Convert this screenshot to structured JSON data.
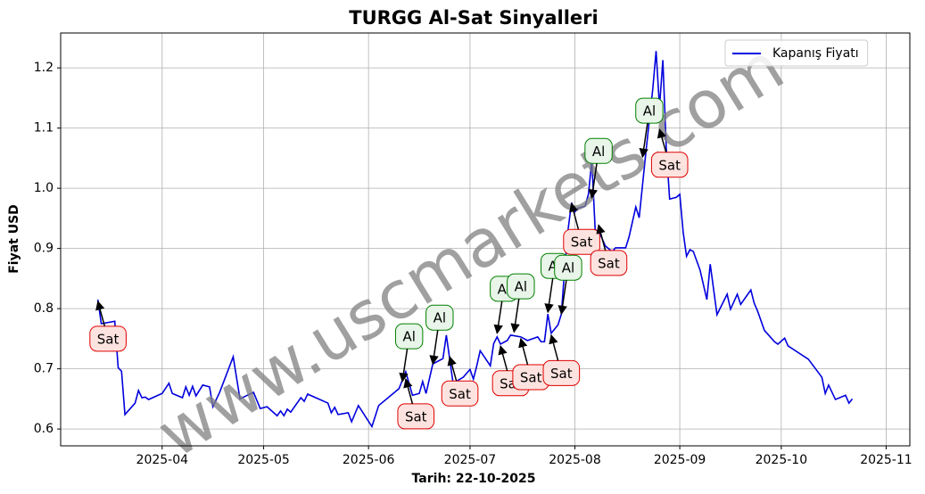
{
  "chart_data": {
    "type": "line",
    "title": "TURGG Al-Sat Sinyalleri",
    "xlabel": "Tarih: 22-10-2025",
    "ylabel": "Fiyat USD",
    "watermark": "www.uscmarkets.com",
    "legend": "upper right",
    "grid": true,
    "xlim": [
      "2025-03-02",
      "2025-11-08"
    ],
    "ylim": [
      0.572,
      1.258
    ],
    "xticks": [
      {
        "value": "2025-04-01",
        "label": "2025-04"
      },
      {
        "value": "2025-05-01",
        "label": "2025-05"
      },
      {
        "value": "2025-06-01",
        "label": "2025-06"
      },
      {
        "value": "2025-07-01",
        "label": "2025-07"
      },
      {
        "value": "2025-08-01",
        "label": "2025-08"
      },
      {
        "value": "2025-09-01",
        "label": "2025-09"
      },
      {
        "value": "2025-10-01",
        "label": "2025-10"
      },
      {
        "value": "2025-11-01",
        "label": "2025-11"
      }
    ],
    "yticks": [
      0.6,
      0.7,
      0.8,
      0.9,
      {
        "value": 1,
        "label": "1.0"
      },
      1.1,
      1.2
    ],
    "x": [
      "2025-03-13",
      "2025-03-14",
      "2025-03-18",
      "2025-03-19",
      "2025-03-20",
      "2025-03-21",
      "2025-03-24",
      "2025-03-25",
      "2025-03-26",
      "2025-03-27",
      "2025-03-28",
      "2025-04-01",
      "2025-04-03",
      "2025-04-04",
      "2025-04-07",
      "2025-04-08",
      "2025-04-09",
      "2025-04-10",
      "2025-04-11",
      "2025-04-13",
      "2025-04-15",
      "2025-04-16",
      "2025-04-18",
      "2025-04-22",
      "2025-04-24",
      "2025-04-28",
      "2025-04-30",
      "2025-05-02",
      "2025-05-05",
      "2025-05-06",
      "2025-05-07",
      "2025-05-08",
      "2025-05-09",
      "2025-05-12",
      "2025-05-13",
      "2025-05-14",
      "2025-05-20",
      "2025-05-21",
      "2025-05-22",
      "2025-05-23",
      "2025-05-26",
      "2025-05-27",
      "2025-05-29",
      "2025-06-02",
      "2025-06-04",
      "2025-06-10",
      "2025-06-12",
      "2025-06-14",
      "2025-06-16",
      "2025-06-17",
      "2025-06-18",
      "2025-06-20",
      "2025-06-23",
      "2025-06-24",
      "2025-06-26",
      "2025-06-29",
      "2025-07-01",
      "2025-07-02",
      "2025-07-03",
      "2025-07-04",
      "2025-07-07",
      "2025-07-08",
      "2025-07-09",
      "2025-07-10",
      "2025-07-12",
      "2025-07-13",
      "2025-07-16",
      "2025-07-18",
      "2025-07-21",
      "2025-07-22",
      "2025-07-23",
      "2025-07-24",
      "2025-07-25",
      "2025-07-27",
      "2025-07-28",
      "2025-07-29",
      "2025-07-30",
      "2025-07-31",
      "2025-08-01",
      "2025-08-02",
      "2025-08-04",
      "2025-08-05",
      "2025-08-06",
      "2025-08-07",
      "2025-08-08",
      "2025-08-10",
      "2025-08-12",
      "2025-08-13",
      "2025-08-16",
      "2025-08-17",
      "2025-08-19",
      "2025-08-20",
      "2025-08-22",
      "2025-08-24",
      "2025-08-25",
      "2025-08-26",
      "2025-08-27",
      "2025-08-28",
      "2025-08-29",
      "2025-08-31",
      "2025-09-01",
      "2025-09-02",
      "2025-09-03",
      "2025-09-04",
      "2025-09-05",
      "2025-09-07",
      "2025-09-09",
      "2025-09-10",
      "2025-09-12",
      "2025-09-15",
      "2025-09-16",
      "2025-09-18",
      "2025-09-19",
      "2025-09-22",
      "2025-09-23",
      "2025-09-24",
      "2025-09-26",
      "2025-09-29",
      "2025-09-30",
      "2025-10-02",
      "2025-10-03",
      "2025-10-09",
      "2025-10-13",
      "2025-10-14",
      "2025-10-15",
      "2025-10-17",
      "2025-10-20",
      "2025-10-21",
      "2025-10-22"
    ],
    "series": [
      {
        "name": "Kapanış Fiyatı",
        "color": "#0000dd",
        "values": [
          0.815,
          0.775,
          0.779,
          0.702,
          0.696,
          0.624,
          0.643,
          0.664,
          0.652,
          0.653,
          0.649,
          0.659,
          0.676,
          0.659,
          0.652,
          0.67,
          0.656,
          0.671,
          0.655,
          0.673,
          0.67,
          0.637,
          0.661,
          0.72,
          0.65,
          0.661,
          0.634,
          0.637,
          0.622,
          0.63,
          0.622,
          0.633,
          0.628,
          0.652,
          0.646,
          0.658,
          0.643,
          0.627,
          0.636,
          0.624,
          0.627,
          0.612,
          0.639,
          0.604,
          0.639,
          0.667,
          0.695,
          0.656,
          0.659,
          0.679,
          0.659,
          0.708,
          0.717,
          0.756,
          0.676,
          0.686,
          0.699,
          0.683,
          0.705,
          0.73,
          0.705,
          0.742,
          0.753,
          0.741,
          0.747,
          0.756,
          0.753,
          0.747,
          0.753,
          0.745,
          0.745,
          0.791,
          0.759,
          0.773,
          0.791,
          0.868,
          0.932,
          0.976,
          0.961,
          0.967,
          0.97,
          0.99,
          1.046,
          0.93,
          0.93,
          0.904,
          0.895,
          0.901,
          0.901,
          0.919,
          0.969,
          0.951,
          1.061,
          1.164,
          1.228,
          1.135,
          1.213,
          1.067,
          0.982,
          0.985,
          0.99,
          0.927,
          0.887,
          0.898,
          0.895,
          0.864,
          0.815,
          0.874,
          0.79,
          0.824,
          0.799,
          0.824,
          0.807,
          0.831,
          0.809,
          0.796,
          0.764,
          0.745,
          0.741,
          0.751,
          0.738,
          0.716,
          0.686,
          0.659,
          0.673,
          0.649,
          0.656,
          0.643,
          0.65
        ]
      }
    ],
    "annotations": [
      {
        "text": "Sat",
        "x": "2025-03-13",
        "y": 0.812,
        "text_x": "2025-03-16",
        "text_y": 0.75,
        "face_color": "#fde3df",
        "edge_color": "#e00000"
      },
      {
        "text": "Al",
        "x": "2025-06-11",
        "y": 0.679,
        "text_x": "2025-06-13",
        "text_y": 0.754,
        "face_color": "#e8f5e8",
        "edge_color": "#008000"
      },
      {
        "text": "Sat",
        "x": "2025-06-12",
        "y": 0.683,
        "text_x": "2025-06-15",
        "text_y": 0.621,
        "face_color": "#fde3df",
        "edge_color": "#e00000"
      },
      {
        "text": "Al",
        "x": "2025-06-20",
        "y": 0.708,
        "text_x": "2025-06-22",
        "text_y": 0.785,
        "face_color": "#e8f5e8",
        "edge_color": "#008000"
      },
      {
        "text": "Sat",
        "x": "2025-06-25",
        "y": 0.72,
        "text_x": "2025-06-28",
        "text_y": 0.659,
        "face_color": "#fde3df",
        "edge_color": "#e00000"
      },
      {
        "text": "Al",
        "x": "2025-07-09",
        "y": 0.759,
        "text_x": "2025-07-11",
        "text_y": 0.833,
        "face_color": "#e8f5e8",
        "edge_color": "#008000"
      },
      {
        "text": "Sat",
        "x": "2025-07-10",
        "y": 0.738,
        "text_x": "2025-07-13",
        "text_y": 0.676,
        "face_color": "#fde3df",
        "edge_color": "#e00000"
      },
      {
        "text": "Al",
        "x": "2025-07-14",
        "y": 0.761,
        "text_x": "2025-07-16",
        "text_y": 0.837,
        "face_color": "#e8f5e8",
        "edge_color": "#008000"
      },
      {
        "text": "Sat",
        "x": "2025-07-16",
        "y": 0.75,
        "text_x": "2025-07-19",
        "text_y": 0.686,
        "face_color": "#fde3df",
        "edge_color": "#e00000"
      },
      {
        "text": "Al",
        "x": "2025-07-24",
        "y": 0.794,
        "text_x": "2025-07-26",
        "text_y": 0.871,
        "face_color": "#e8f5e8",
        "edge_color": "#008000"
      },
      {
        "text": "Sat",
        "x": "2025-07-25",
        "y": 0.756,
        "text_x": "2025-07-28",
        "text_y": 0.693,
        "face_color": "#fde3df",
        "edge_color": "#e00000"
      },
      {
        "text": "Al",
        "x": "2025-07-28",
        "y": 0.791,
        "text_x": "2025-07-30",
        "text_y": 0.868,
        "face_color": "#e8f5e8",
        "edge_color": "#008000"
      },
      {
        "text": "Sat",
        "x": "2025-07-31",
        "y": 0.975,
        "text_x": "2025-08-03",
        "text_y": 0.911,
        "face_color": "#fde3df",
        "edge_color": "#e00000"
      },
      {
        "text": "Al",
        "x": "2025-08-06",
        "y": 0.984,
        "text_x": "2025-08-08",
        "text_y": 1.062,
        "face_color": "#e8f5e8",
        "edge_color": "#008000"
      },
      {
        "text": "Sat",
        "x": "2025-08-08",
        "y": 0.939,
        "text_x": "2025-08-11",
        "text_y": 0.876,
        "face_color": "#fde3df",
        "edge_color": "#e00000"
      },
      {
        "text": "Al",
        "x": "2025-08-21",
        "y": 1.052,
        "text_x": "2025-08-23",
        "text_y": 1.129,
        "face_color": "#e8f5e8",
        "edge_color": "#008000"
      },
      {
        "text": "Sat",
        "x": "2025-08-26",
        "y": 1.098,
        "text_x": "2025-08-29",
        "text_y": 1.039,
        "face_color": "#fde3df",
        "edge_color": "#e00000"
      }
    ]
  }
}
